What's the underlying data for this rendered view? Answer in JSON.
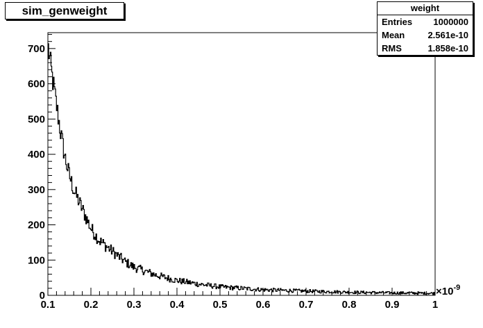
{
  "title": "sim_genweight",
  "stats": {
    "name": "weight",
    "rows": [
      {
        "label": "Entries",
        "value": "1000000"
      },
      {
        "label": "Mean",
        "value": "2.561e-10"
      },
      {
        "label": "RMS",
        "value": "1.858e-10"
      }
    ]
  },
  "chart_data": {
    "type": "histogram",
    "title": "sim_genweight",
    "xlabel": "",
    "ylabel": "",
    "xlim": [
      0.1,
      1.0
    ],
    "ylim": [
      0,
      745
    ],
    "x_multiplier": "×10",
    "x_multiplier_exponent": "-9",
    "xticks": [
      "0.1",
      "0.2",
      "0.3",
      "0.4",
      "0.5",
      "0.6",
      "0.7",
      "0.8",
      "0.9",
      "1"
    ],
    "yticks": [
      "0",
      "100",
      "200",
      "300",
      "400",
      "500",
      "600",
      "700"
    ],
    "grid": false,
    "series": [
      {
        "x": [
          0.1,
          0.11,
          0.12,
          0.13,
          0.14,
          0.15,
          0.16,
          0.18,
          0.2,
          0.22,
          0.25,
          0.28,
          0.3,
          0.35,
          0.4,
          0.45,
          0.5,
          0.55,
          0.6,
          0.7,
          0.8,
          0.9,
          0.99
        ],
        "values": [
          710,
          620,
          540,
          460,
          390,
          340,
          300,
          245,
          190,
          155,
          125,
          95,
          80,
          58,
          42,
          32,
          24,
          20,
          16,
          12,
          9,
          7,
          6
        ]
      }
    ]
  }
}
